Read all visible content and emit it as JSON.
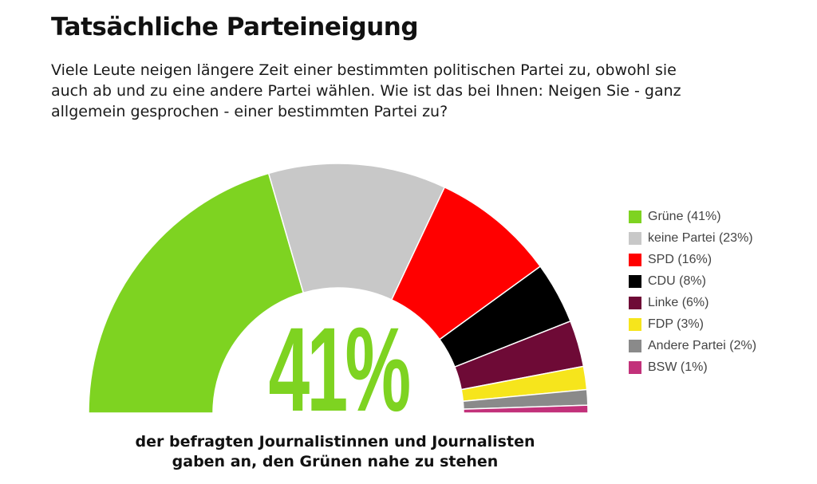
{
  "title": "Tatsächliche Parteineigung",
  "question": [
    "Viele Leute neigen längere Zeit einer bestimmten politischen Partei zu, obwohl sie",
    "auch ab und zu eine andere Partei wählen. Wie ist das bei Ihnen: Neigen Sie - ganz",
    "allgemein gesprochen - einer bestimmten Partei zu?"
  ],
  "big_number": "41%",
  "caption": [
    "der befragten Journalistinnen und Journalisten",
    "gaben an, den Grünen nahe zu stehen"
  ],
  "chart_data": {
    "type": "pie",
    "variant": "semicircle-donut",
    "legend_position": "right",
    "categories": [
      "Grüne",
      "keine Partei",
      "SPD",
      "CDU",
      "Linke",
      "FDP",
      "Andere Partei",
      "BSW"
    ],
    "values": [
      41,
      23,
      16,
      8,
      6,
      3,
      2,
      1
    ],
    "unit": "%",
    "colors": [
      "#7ed321",
      "#c8c8c8",
      "#ff0000",
      "#000000",
      "#6e0a36",
      "#f6e51c",
      "#8a8a8a",
      "#c2317a"
    ],
    "legend_labels": [
      "Grüne (41%)",
      "keine Partei (23%)",
      "SPD (16%)",
      "CDU (8%)",
      "Linke (6%)",
      "FDP (3%)",
      "Andere Partei (2%)",
      "BSW (1%)"
    ]
  }
}
